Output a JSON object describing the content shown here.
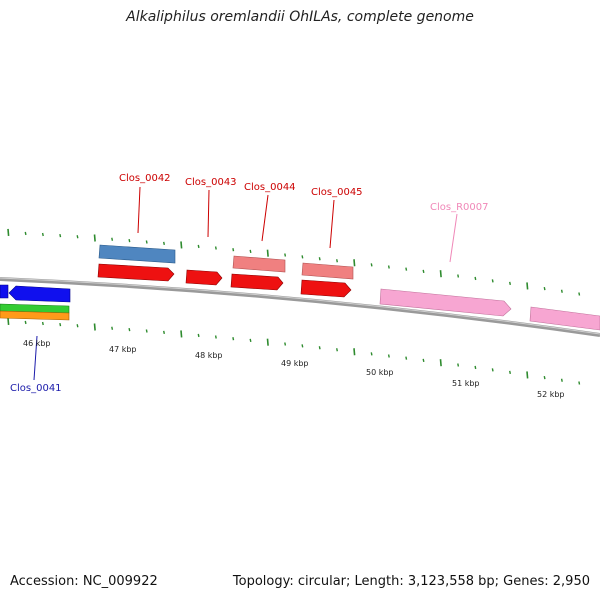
{
  "title": "Alkaliphilus oremlandii OhILAs, complete genome",
  "footer": {
    "accession": "Accession: NC_009922",
    "stats": "Topology: circular; Length: 3,123,558 bp; Genes: 2,950"
  },
  "colors": {
    "backbone": "#8a8a8a",
    "tick": "#2e8b2e",
    "cds": "#ee1111",
    "label_red": "#cc0000",
    "label_blue": "#1a1aaa",
    "label_pink": "#f088b8"
  },
  "scale_labels": [
    {
      "text": "46 kbp",
      "kbp": 46
    },
    {
      "text": "47 kbp",
      "kbp": 47
    },
    {
      "text": "48 kbp",
      "kbp": 48
    },
    {
      "text": "49 kbp",
      "kbp": 49
    },
    {
      "text": "50 kbp",
      "kbp": 50
    },
    {
      "text": "51 kbp",
      "kbp": 51
    },
    {
      "text": "52 kbp",
      "kbp": 52
    }
  ],
  "gene_labels": [
    {
      "name": "Clos_0041",
      "color": "#1a1aaa"
    },
    {
      "name": "Clos_0042",
      "color": "#cc0000"
    },
    {
      "name": "Clos_0043",
      "color": "#cc0000"
    },
    {
      "name": "Clos_0044",
      "color": "#cc0000"
    },
    {
      "name": "Clos_0045",
      "color": "#cc0000"
    },
    {
      "name": "Clos_R0007",
      "color": "#f088b8"
    }
  ]
}
